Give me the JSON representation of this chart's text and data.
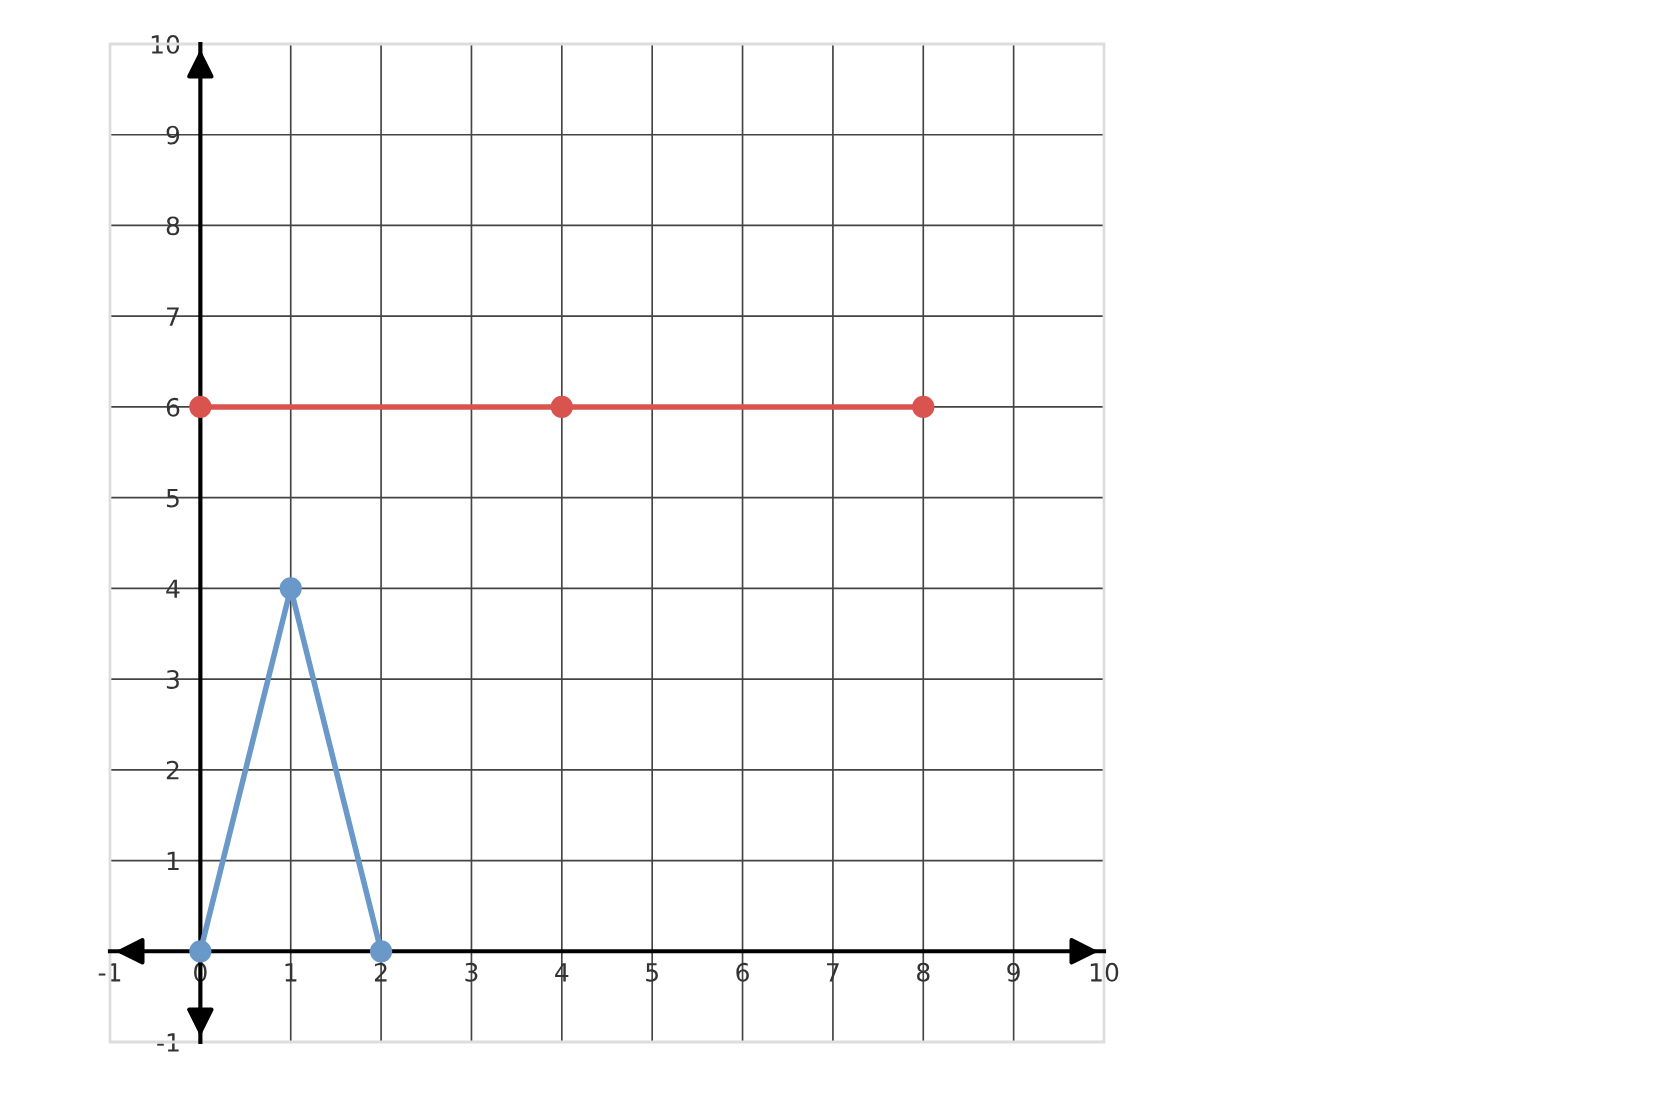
{
  "chart_data": {
    "type": "line",
    "series": [
      {
        "color": "#6a98c8",
        "values": [
          0,
          4,
          0
        ],
        "x": [
          0,
          1,
          2
        ]
      },
      {
        "color": "#d9534f",
        "values": [
          6,
          6,
          6
        ],
        "x": [
          0,
          4,
          8
        ]
      }
    ],
    "xlim": [
      -1,
      10
    ],
    "ylim": [
      -1,
      10
    ],
    "xticks": [
      -1,
      0,
      1,
      2,
      3,
      4,
      5,
      6,
      7,
      8,
      9,
      10
    ],
    "yticks": [
      -1,
      1,
      2,
      3,
      4,
      5,
      6,
      7,
      8,
      9,
      10
    ],
    "grid": true,
    "marker": "circle",
    "line_style": "solid"
  }
}
